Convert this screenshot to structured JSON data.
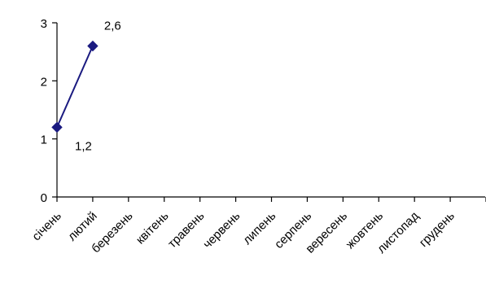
{
  "chart_data": {
    "type": "line",
    "categories": [
      "січень",
      "лютий",
      "березень",
      "квітень",
      "травень",
      "червень",
      "липень",
      "серпень",
      "вересень",
      "жовтень",
      "листопад",
      "грудень"
    ],
    "series": [
      {
        "values": [
          1.2,
          2.6,
          null,
          null,
          null,
          null,
          null,
          null,
          null,
          null,
          null,
          null
        ]
      }
    ],
    "data_labels": [
      "1,2",
      "2,6"
    ],
    "y_ticks": [
      "0",
      "1",
      "2",
      "3"
    ],
    "ylim": [
      0,
      3
    ],
    "grid": false,
    "legend": "none",
    "colors": {
      "series": "#1a1a80",
      "axis": "#000000"
    },
    "marker": "diamond"
  }
}
